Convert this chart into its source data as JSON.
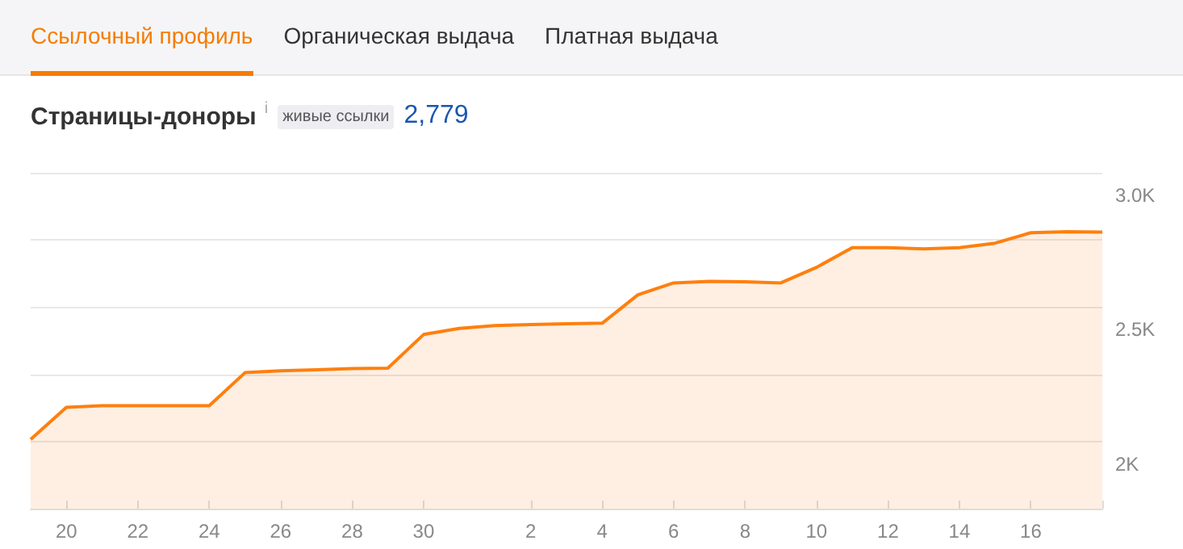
{
  "chart_data": {
    "type": "area",
    "title": "Страницы-доноры",
    "annotations": [
      "Ссылочный профиль",
      "Органическая выдача",
      "Платная выдача",
      "живые ссылки",
      "2,779",
      "i"
    ],
    "categories": [
      null,
      "20",
      null,
      "22",
      null,
      "24",
      null,
      "26",
      null,
      "28",
      null,
      "30",
      null,
      null,
      "2",
      null,
      "4",
      null,
      "6",
      null,
      "8",
      null,
      "10",
      null,
      "12",
      null,
      "14",
      null,
      "16",
      null,
      null
    ],
    "series": [
      {
        "color": "#ff7f0e",
        "values": [
          2008,
          2127,
          2133,
          2133,
          2133,
          2133,
          2256,
          2263,
          2267,
          2271,
          2273,
          2398,
          2421,
          2431,
          2435,
          2438,
          2440,
          2546,
          2590,
          2596,
          2594,
          2590,
          2648,
          2721,
          2721,
          2717,
          2721,
          2738,
          2777,
          2781,
          2779
        ]
      }
    ],
    "ylim": [
      1750,
      3000
    ],
    "yticks": [
      {
        "value": 2000,
        "label": "2K"
      },
      {
        "value": 2250,
        "label": null
      },
      {
        "value": 2500,
        "label": "2.5K"
      },
      {
        "value": 2750,
        "label": null
      },
      {
        "value": 3000,
        "label": "3.0K"
      }
    ],
    "grid": "y",
    "marker": "none",
    "line_style": "solid"
  }
}
